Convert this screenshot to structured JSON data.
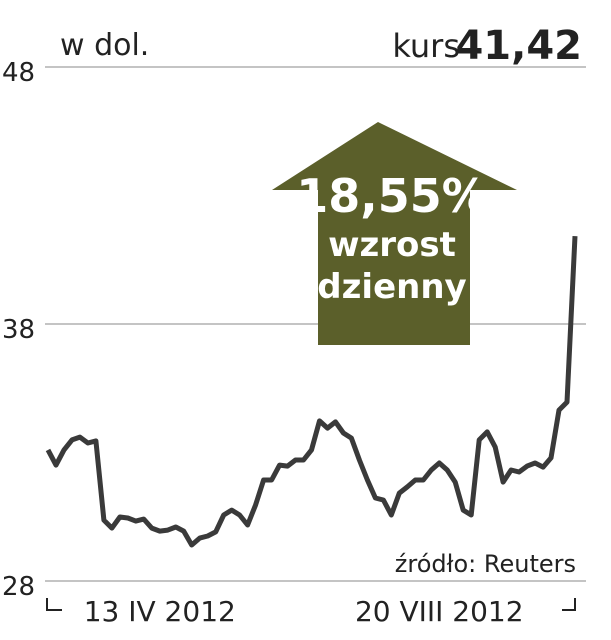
{
  "chart_data": {
    "type": "line",
    "y_label": "w dol.",
    "price_label": "kurs",
    "price": "41,42",
    "annotation": {
      "change": "18,55%",
      "line1": "wzrost",
      "line2": "dzienny"
    },
    "source": "źródło: Reuters",
    "categories": [
      null,
      null,
      null,
      null,
      null,
      null,
      null,
      null,
      null,
      null,
      null,
      null,
      null,
      null,
      "13 IV 2012",
      null,
      null,
      null,
      null,
      null,
      null,
      null,
      null,
      null,
      null,
      null,
      null,
      null,
      null,
      null,
      null,
      null,
      null,
      null,
      null,
      null,
      null,
      null,
      null,
      null,
      null,
      null,
      null,
      null,
      null,
      null,
      null,
      null,
      null,
      "20 VIII 2012",
      null,
      null,
      null,
      null,
      null,
      null,
      null,
      null,
      null,
      null,
      null,
      null,
      null,
      null,
      null,
      null,
      null
    ],
    "series": [
      {
        "name": null,
        "color": "#3a3a3a",
        "values": [
          33.1,
          32.51,
          33.1,
          33.49,
          33.6,
          33.37,
          33.45,
          30.37,
          30.06,
          30.49,
          30.45,
          30.33,
          30.41,
          30.06,
          29.94,
          29.98,
          30.1,
          29.94,
          29.4,
          29.67,
          29.75,
          29.91,
          30.57,
          30.76,
          30.57,
          30.18,
          30.96,
          31.93,
          31.93,
          32.51,
          32.47,
          32.71,
          32.71,
          33.1,
          34.23,
          33.95,
          34.19,
          33.76,
          33.56,
          32.71,
          31.93,
          31.23,
          31.15,
          30.57,
          31.42,
          31.66,
          31.93,
          31.93,
          32.32,
          32.59,
          32.32,
          31.85,
          30.76,
          30.57,
          33.49,
          33.8,
          33.21,
          31.85,
          32.32,
          32.24,
          32.47,
          32.59,
          32.43,
          32.79,
          34.65,
          34.96,
          41.42
        ]
      }
    ],
    "ylim": [
      28,
      48
    ],
    "yticks": [
      28,
      38,
      48
    ],
    "grid": true,
    "annotation_color": "#5b5f2a"
  }
}
